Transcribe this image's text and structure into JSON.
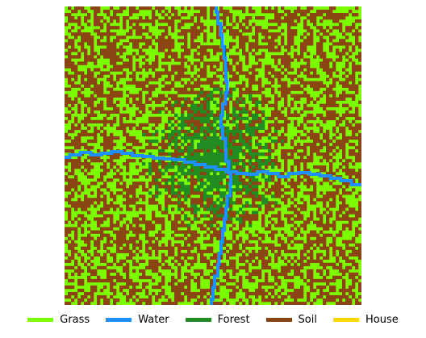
{
  "map": {
    "grid": {
      "cols": 92,
      "rows": 92
    },
    "colors": {
      "grass": "#7cfc00",
      "water": "#1e90ff",
      "forest": "#228b22",
      "soil": "#8b4513",
      "house": "#ffd700"
    },
    "layout_rules": {
      "base_mix": [
        "grass",
        "soil"
      ],
      "forest_cluster_center": "center",
      "river_vertical": "top-center to bottom-center",
      "river_horizontal": "left-middle to right-middle"
    }
  },
  "legend": {
    "items": [
      {
        "label": "Grass",
        "color": "#7cfc00",
        "icon": "grass-swatch"
      },
      {
        "label": "Water",
        "color": "#1e90ff",
        "icon": "water-swatch"
      },
      {
        "label": "Forest",
        "color": "#228b22",
        "icon": "forest-swatch"
      },
      {
        "label": "Soil",
        "color": "#8b4513",
        "icon": "soil-swatch"
      },
      {
        "label": "House",
        "color": "#ffd700",
        "icon": "house-swatch"
      }
    ]
  }
}
